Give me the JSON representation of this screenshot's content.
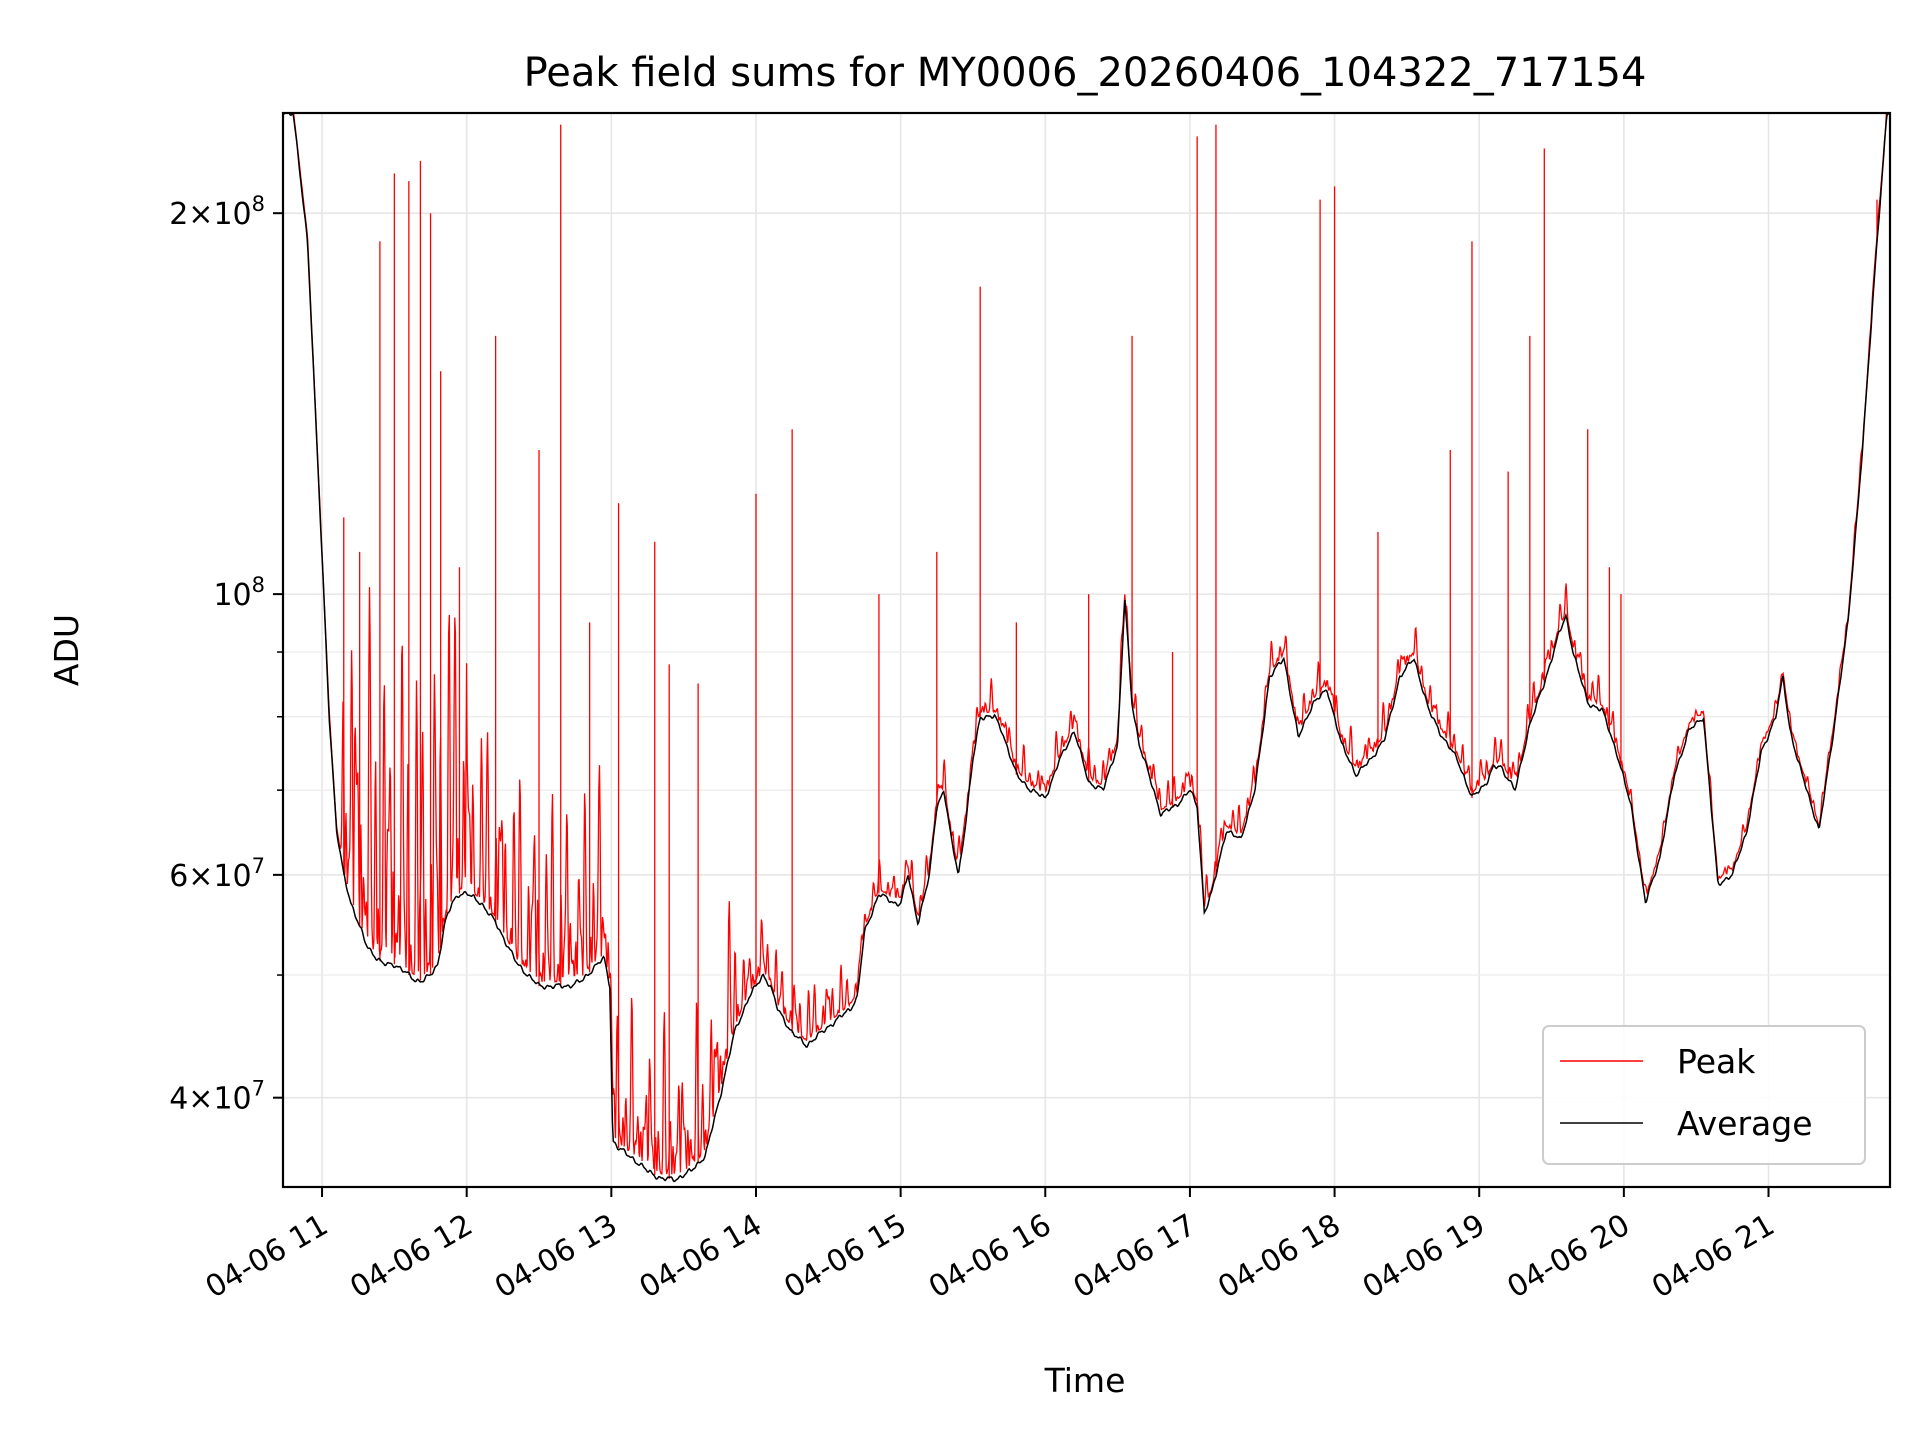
{
  "chart_data": {
    "type": "line",
    "title": "Peak field sums for MY0006_20260406_104322_717154",
    "xlabel": "Time",
    "ylabel": "ADU",
    "yscale": "log",
    "x_unit": "hour of 2026-04-06",
    "xlim": [
      10.73,
      21.84
    ],
    "ylim": [
      34000000,
      240000000
    ],
    "x_ticks": [
      11,
      12,
      13,
      14,
      15,
      16,
      17,
      18,
      19,
      20,
      21
    ],
    "x_tick_labels": [
      "04-06 11",
      "04-06 12",
      "04-06 13",
      "04-06 14",
      "04-06 15",
      "04-06 16",
      "04-06 17",
      "04-06 18",
      "04-06 19",
      "04-06 20",
      "04-06 21"
    ],
    "y_major_ticks": [
      40000000,
      60000000,
      100000000,
      200000000
    ],
    "y_major_tick_labels": [
      {
        "mant": "4",
        "exp": "7"
      },
      {
        "mant": "6",
        "exp": "7"
      },
      {
        "mant": "",
        "exp": "8"
      },
      {
        "mant": "2",
        "exp": "8"
      }
    ],
    "y_minor_ticks": [
      50000000,
      70000000,
      80000000,
      90000000
    ],
    "grid": true,
    "legend": {
      "position": "lower-right",
      "entries": [
        "Peak",
        "Average"
      ]
    },
    "series": [
      {
        "name": "Average",
        "color": "#000000",
        "x": [
          10.8,
          10.9,
          10.98,
          11.05,
          11.1,
          11.15,
          11.2,
          11.25,
          11.3,
          11.35,
          11.42,
          11.5,
          11.55,
          11.6,
          11.65,
          11.7,
          11.75,
          11.8,
          11.85,
          11.9,
          11.95,
          12.0,
          12.1,
          12.2,
          12.35,
          12.5,
          12.6,
          12.7,
          12.8,
          12.9,
          12.95,
          12.99,
          13.01,
          13.05,
          13.15,
          13.25,
          13.35,
          13.45,
          13.55,
          13.65,
          13.75,
          13.85,
          13.95,
          14.05,
          14.1,
          14.15,
          14.25,
          14.35,
          14.45,
          14.55,
          14.65,
          14.7,
          14.75,
          14.85,
          14.95,
          15.0,
          15.05,
          15.12,
          15.2,
          15.25,
          15.3,
          15.35,
          15.4,
          15.45,
          15.5,
          15.55,
          15.65,
          15.7,
          15.8,
          15.9,
          16.0,
          16.1,
          16.2,
          16.3,
          16.4,
          16.5,
          16.55,
          16.6,
          16.65,
          16.7,
          16.8,
          16.9,
          17.0,
          17.05,
          17.1,
          17.15,
          17.25,
          17.35,
          17.45,
          17.55,
          17.65,
          17.75,
          17.85,
          17.95,
          18.05,
          18.15,
          18.25,
          18.35,
          18.45,
          18.55,
          18.65,
          18.75,
          18.85,
          18.95,
          19.05,
          19.1,
          19.15,
          19.25,
          19.35,
          19.45,
          19.55,
          19.6,
          19.65,
          19.75,
          19.85,
          19.95,
          20.05,
          20.15,
          20.25,
          20.35,
          20.45,
          20.55,
          20.65,
          20.75,
          20.85,
          20.95,
          21.05,
          21.1,
          21.15,
          21.2,
          21.25,
          21.35,
          21.45,
          21.55,
          21.65,
          21.75,
          21.82
        ],
        "y": [
          240000000,
          190000000,
          120000000,
          80000000,
          65000000,
          60000000,
          57000000,
          55000000,
          53000000,
          52000000,
          51000000,
          51000000,
          50500000,
          50000000,
          49500000,
          49500000,
          50000000,
          51000000,
          55000000,
          57000000,
          58000000,
          58000000,
          57000000,
          55000000,
          51000000,
          49000000,
          49000000,
          49000000,
          49500000,
          51000000,
          51500000,
          49000000,
          37000000,
          36500000,
          35800000,
          35000000,
          34500000,
          34500000,
          35000000,
          36000000,
          40000000,
          45000000,
          48000000,
          50000000,
          49000000,
          47000000,
          45000000,
          44000000,
          45000000,
          46000000,
          47000000,
          48000000,
          54000000,
          58000000,
          57000000,
          57000000,
          60000000,
          55000000,
          60000000,
          68000000,
          70000000,
          64000000,
          60000000,
          66000000,
          74000000,
          80000000,
          80000000,
          78000000,
          72000000,
          70000000,
          69000000,
          74000000,
          78000000,
          71000000,
          70000000,
          76000000,
          99000000,
          82000000,
          76000000,
          73000000,
          67000000,
          68000000,
          70000000,
          68000000,
          56000000,
          58000000,
          65000000,
          64000000,
          70000000,
          86000000,
          89000000,
          77000000,
          82000000,
          84000000,
          76000000,
          72000000,
          74000000,
          77000000,
          86000000,
          89000000,
          81000000,
          77000000,
          74000000,
          69000000,
          71000000,
          73000000,
          73000000,
          70000000,
          79000000,
          85000000,
          93000000,
          96000000,
          90000000,
          82000000,
          81000000,
          75000000,
          68000000,
          57000000,
          62000000,
          72000000,
          78000000,
          80000000,
          59000000,
          60000000,
          65000000,
          75000000,
          80000000,
          86000000,
          78000000,
          74000000,
          71000000,
          65000000,
          78000000,
          95000000,
          130000000,
          190000000,
          240000000
        ]
      },
      {
        "name": "Peak",
        "color": "#ff0000",
        "spikes": [
          {
            "x": 11.15,
            "y": 115000000
          },
          {
            "x": 11.26,
            "y": 108000000
          },
          {
            "x": 11.4,
            "y": 190000000
          },
          {
            "x": 11.5,
            "y": 215000000
          },
          {
            "x": 11.6,
            "y": 212000000
          },
          {
            "x": 11.68,
            "y": 220000000
          },
          {
            "x": 11.75,
            "y": 200000000
          },
          {
            "x": 11.82,
            "y": 150000000
          },
          {
            "x": 11.95,
            "y": 105000000
          },
          {
            "x": 12.2,
            "y": 160000000
          },
          {
            "x": 12.5,
            "y": 130000000
          },
          {
            "x": 12.65,
            "y": 235000000
          },
          {
            "x": 12.85,
            "y": 95000000
          },
          {
            "x": 13.05,
            "y": 118000000
          },
          {
            "x": 13.3,
            "y": 110000000
          },
          {
            "x": 13.4,
            "y": 88000000
          },
          {
            "x": 13.6,
            "y": 85000000
          },
          {
            "x": 14.0,
            "y": 120000000
          },
          {
            "x": 14.25,
            "y": 135000000
          },
          {
            "x": 14.85,
            "y": 100000000
          },
          {
            "x": 15.25,
            "y": 108000000
          },
          {
            "x": 15.55,
            "y": 175000000
          },
          {
            "x": 15.8,
            "y": 95000000
          },
          {
            "x": 16.3,
            "y": 100000000
          },
          {
            "x": 16.6,
            "y": 160000000
          },
          {
            "x": 16.88,
            "y": 90000000
          },
          {
            "x": 17.05,
            "y": 230000000
          },
          {
            "x": 17.18,
            "y": 235000000
          },
          {
            "x": 17.9,
            "y": 205000000
          },
          {
            "x": 18.0,
            "y": 210000000
          },
          {
            "x": 18.3,
            "y": 112000000
          },
          {
            "x": 18.8,
            "y": 130000000
          },
          {
            "x": 18.95,
            "y": 190000000
          },
          {
            "x": 19.2,
            "y": 125000000
          },
          {
            "x": 19.35,
            "y": 160000000
          },
          {
            "x": 19.45,
            "y": 225000000
          },
          {
            "x": 19.75,
            "y": 135000000
          },
          {
            "x": 19.9,
            "y": 105000000
          },
          {
            "x": 19.98,
            "y": 100000000
          },
          {
            "x": 21.75,
            "y": 205000000
          }
        ]
      }
    ]
  }
}
